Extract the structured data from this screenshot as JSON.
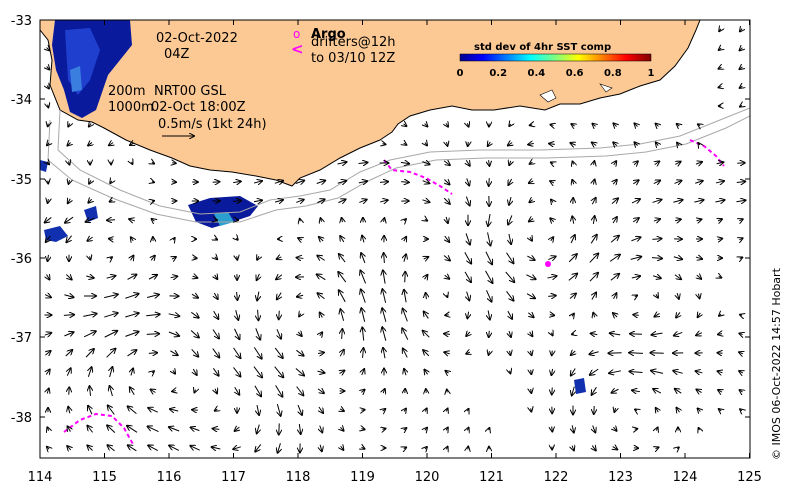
{
  "map": {
    "lon_ticks": [
      "114",
      "115",
      "116",
      "117",
      "118",
      "119",
      "120",
      "121",
      "122",
      "123",
      "124",
      "125"
    ],
    "lat_ticks": [
      "-33",
      "-34",
      "-35",
      "-36",
      "-37",
      "-38"
    ],
    "land_color": "#fcc995",
    "ocean_color": "#ffffff"
  },
  "annotations": {
    "date": "02-Oct-2022",
    "time": "04Z",
    "isobath_label": "200m",
    "isobath_label2": "1000m",
    "product": "NRT00 GSL",
    "product_time": "02-Oct 18:00Z",
    "scale_vector": "0.5m/s (1kt 24h)"
  },
  "legend": {
    "argo_symbol": "o",
    "argo_label": "Argo",
    "drifter_symbol": "<",
    "drifter_label": "drifters@12h",
    "drifter_label2": "to 03/10 12Z",
    "marker_color": "#ff00ff"
  },
  "colorbar": {
    "title": "std dev of 4hr SST comp",
    "ticks": [
      "0",
      "0.2",
      "0.4",
      "0.6",
      "0.8",
      "1"
    ]
  },
  "credit": "© IMOS 06-Oct-2022 14:57 Hobart"
}
